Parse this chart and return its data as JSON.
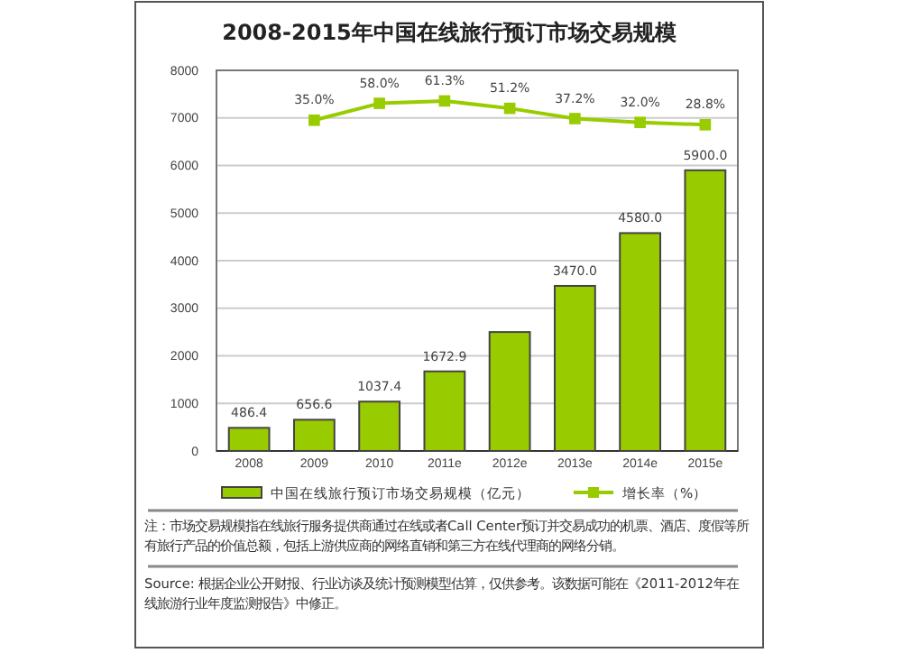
{
  "chart_data": {
    "type": "bar",
    "title": "2008-2015年中国在线旅行预订市场交易规模",
    "categories": [
      "2008",
      "2009",
      "2010",
      "2011e",
      "2012e",
      "2013e",
      "2014e",
      "2015e"
    ],
    "series": [
      {
        "name": "中国在线旅行预订市场交易规模（亿元）",
        "color": "#99cc00",
        "values": [
          486.4,
          656.6,
          1037.4,
          1672.9,
          2500,
          3470.0,
          4580.0,
          5900.0
        ],
        "value_labels": [
          "486.4",
          "656.6",
          "1037.4",
          "1672.9",
          null,
          "3470.0",
          "4580.0",
          "5900.0"
        ]
      },
      {
        "name": "增长率（%）",
        "type": "line",
        "axis": "y2",
        "color": "#99cc00",
        "marker": "square",
        "values": [
          null,
          35.0,
          58.0,
          61.3,
          51.2,
          37.2,
          32.0,
          28.8
        ],
        "value_labels": [
          null,
          "35.0%",
          "58.0%",
          "61.3%",
          "51.2%",
          "37.2%",
          "32.0%",
          "28.8%"
        ]
      }
    ],
    "ylim": [
      0,
      8000
    ],
    "yticks": [
      0,
      1000,
      2000,
      3000,
      4000,
      5000,
      6000,
      7000,
      8000
    ],
    "y2lim": [
      -416,
      103
    ],
    "grid": "y",
    "legend": "bottom",
    "tick_labels": "xy",
    "annotations": [
      "注：市场交易规模指在线旅行服务提供商通过在线或者Call Center预订并交易成功的机票、酒店、度假等所有旅行产品的价值总额，包括上游供应商的网络直销和第三方在线代理商的网络分销。",
      "Source: 根据企业公开财报、行业访谈及统计预测模型估算，仅供参考。该数据可能在《2011-2012年在线旅游行业年度监测报告》中修正。"
    ]
  }
}
